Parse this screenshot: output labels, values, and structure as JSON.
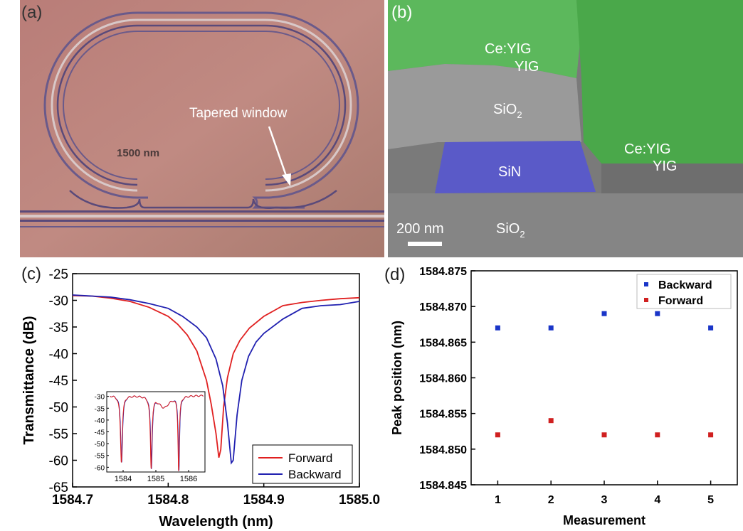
{
  "panel_a": {
    "label": "(a)",
    "scale_text": "1500 nm",
    "annotation": "Tapered window"
  },
  "panel_b": {
    "label": "(b)",
    "layers": {
      "ceyig_top": "Ce:YIG",
      "yig_top": "YIG",
      "sio2_mid": "SiO",
      "sio2_mid_sub": "2",
      "ceyig_right": "Ce:YIG",
      "yig_right": "YIG",
      "sin": "SiN",
      "sio2_bottom": "SiO",
      "sio2_bottom_sub": "2"
    },
    "scale_bar": "200 nm",
    "colors": {
      "substrate": "#7a7a7a",
      "yig": "#5cb85c",
      "sin": "#5a5ac8"
    }
  },
  "chart_data": [
    {
      "type": "line",
      "panel_label": "(c)",
      "xlabel": "Wavelength (nm)",
      "ylabel": "Transmittance (dB)",
      "xlim": [
        1584.7,
        1585.0
      ],
      "ylim": [
        -65,
        -25
      ],
      "x_ticks": [
        "1584.7",
        "1584.8",
        "1584.9",
        "1585.0"
      ],
      "y_ticks": [
        "-25",
        "-30",
        "-35",
        "-40",
        "-45",
        "-50",
        "-55",
        "-60",
        "-65"
      ],
      "legend_position": "bottom-right",
      "series": [
        {
          "name": "Forward",
          "color": "#e02020",
          "x": [
            1584.7,
            1584.72,
            1584.74,
            1584.76,
            1584.78,
            1584.8,
            1584.81,
            1584.82,
            1584.83,
            1584.84,
            1584.845,
            1584.85,
            1584.853,
            1584.855,
            1584.858,
            1584.862,
            1584.868,
            1584.875,
            1584.885,
            1584.9,
            1584.92,
            1584.94,
            1584.96,
            1584.98,
            1585.0
          ],
          "y": [
            -29.1,
            -29.2,
            -29.6,
            -30.2,
            -31.3,
            -33.0,
            -34.5,
            -36.5,
            -39.5,
            -45.0,
            -49.5,
            -55.0,
            -59.5,
            -58.0,
            -50.0,
            -44.5,
            -40.0,
            -37.5,
            -35.2,
            -33.0,
            -31.0,
            -30.4,
            -30.0,
            -29.7,
            -29.5
          ]
        },
        {
          "name": "Backward",
          "color": "#2020b0",
          "x": [
            1584.7,
            1584.72,
            1584.74,
            1584.76,
            1584.78,
            1584.8,
            1584.815,
            1584.83,
            1584.84,
            1584.85,
            1584.857,
            1584.862,
            1584.866,
            1584.868,
            1584.872,
            1584.877,
            1584.884,
            1584.892,
            1584.9,
            1584.92,
            1584.94,
            1584.96,
            1584.98,
            1585.0
          ],
          "y": [
            -29.0,
            -29.2,
            -29.4,
            -29.9,
            -30.6,
            -31.5,
            -33.0,
            -35.0,
            -37.0,
            -41.0,
            -46.0,
            -53.0,
            -60.5,
            -60.0,
            -51.5,
            -45.0,
            -40.5,
            -37.8,
            -36.2,
            -33.5,
            -31.5,
            -31.0,
            -30.8,
            -30.2
          ]
        }
      ],
      "inset": {
        "xlim": [
          1583.5,
          1586.5
        ],
        "ylim": [
          -62,
          -28
        ],
        "x_ticks": [
          "1584",
          "1585",
          "1586"
        ],
        "y_ticks": [
          "-30",
          "-35",
          "-40",
          "-45",
          "-50",
          "-55",
          "-60"
        ],
        "dips": [
          {
            "center": 1583.95,
            "depth": -57.5,
            "width": 0.035
          },
          {
            "center": 1584.86,
            "depth": -59.5,
            "width": 0.03
          },
          {
            "center": 1585.7,
            "depth": -60.5,
            "width": 0.025
          }
        ],
        "broad_dip": {
          "center": 1585.25,
          "depth": -34.5,
          "width": 0.2
        }
      }
    },
    {
      "type": "scatter",
      "panel_label": "(d)",
      "xlabel": "Measurement",
      "ylabel": "Peak position (nm)",
      "xlim": [
        0.5,
        5.5
      ],
      "ylim": [
        1584.845,
        1584.875
      ],
      "x_ticks": [
        "1",
        "2",
        "3",
        "4",
        "5"
      ],
      "y_ticks": [
        "1584.845",
        "1584.850",
        "1584.855",
        "1584.860",
        "1584.865",
        "1584.870",
        "1584.875"
      ],
      "legend_position": "top-right",
      "series": [
        {
          "name": "Backward",
          "color": "#1a35c8",
          "x": [
            1,
            2,
            3,
            4,
            5
          ],
          "y": [
            1584.867,
            1584.867,
            1584.869,
            1584.869,
            1584.867
          ]
        },
        {
          "name": "Forward",
          "color": "#d02020",
          "x": [
            1,
            2,
            3,
            4,
            5
          ],
          "y": [
            1584.852,
            1584.854,
            1584.852,
            1584.852,
            1584.852
          ]
        }
      ]
    }
  ]
}
